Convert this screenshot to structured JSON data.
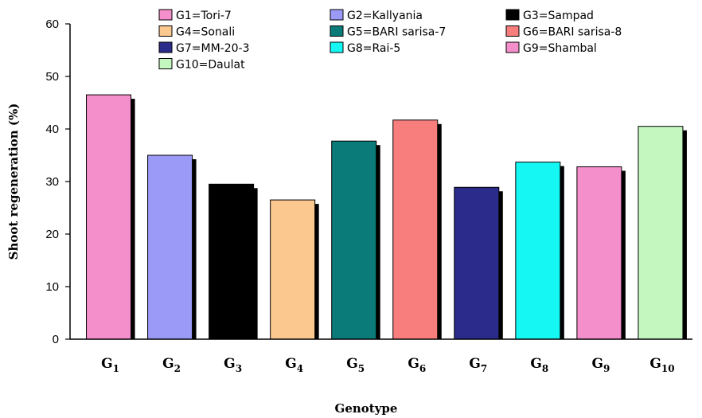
{
  "chart_data": {
    "type": "bar",
    "xlabel": "Genotype",
    "ylabel": "Shoot regeneration (%)",
    "ylim": [
      0,
      60
    ],
    "yticks": [
      0,
      10,
      20,
      30,
      40,
      50,
      60
    ],
    "grid": false,
    "legend_position": "top",
    "categories": [
      {
        "base": "G",
        "sub": "1"
      },
      {
        "base": "G",
        "sub": "2"
      },
      {
        "base": "G",
        "sub": "3"
      },
      {
        "base": "G",
        "sub": "4"
      },
      {
        "base": "G",
        "sub": "5"
      },
      {
        "base": "G",
        "sub": "6"
      },
      {
        "base": "G",
        "sub": "7"
      },
      {
        "base": "G",
        "sub": "8"
      },
      {
        "base": "G",
        "sub": "9"
      },
      {
        "base": "G",
        "sub": "10"
      }
    ],
    "values": [
      46.5,
      35.0,
      29.5,
      26.5,
      37.7,
      41.7,
      28.9,
      33.7,
      32.8,
      40.5
    ],
    "colors": [
      "#f58fcb",
      "#9b9bf7",
      "#000000",
      "#fbc890",
      "#0a7b78",
      "#f87e7e",
      "#2b2b8c",
      "#14f7f3",
      "#f58fcb",
      "#c4f7c0"
    ],
    "legend": [
      {
        "label": "G1=Tori-7",
        "color": "#f58fcb"
      },
      {
        "label": "G2=Kallyania",
        "color": "#9b9bf7"
      },
      {
        "label": "G3=Sampad",
        "color": "#000000"
      },
      {
        "label": "G4=Sonali",
        "color": "#fbc890"
      },
      {
        "label": "G5=BARI sarisa-7",
        "color": "#0a7b78"
      },
      {
        "label": "G6=BARI sarisa-8",
        "color": "#f87e7e"
      },
      {
        "label": "G7=MM-20-3",
        "color": "#2b2b8c"
      },
      {
        "label": "G8=Rai-5",
        "color": "#14f7f3"
      },
      {
        "label": "G9=Shambal",
        "color": "#f58fcb"
      },
      {
        "label": "G10=Daulat",
        "color": "#c4f7c0"
      }
    ]
  }
}
